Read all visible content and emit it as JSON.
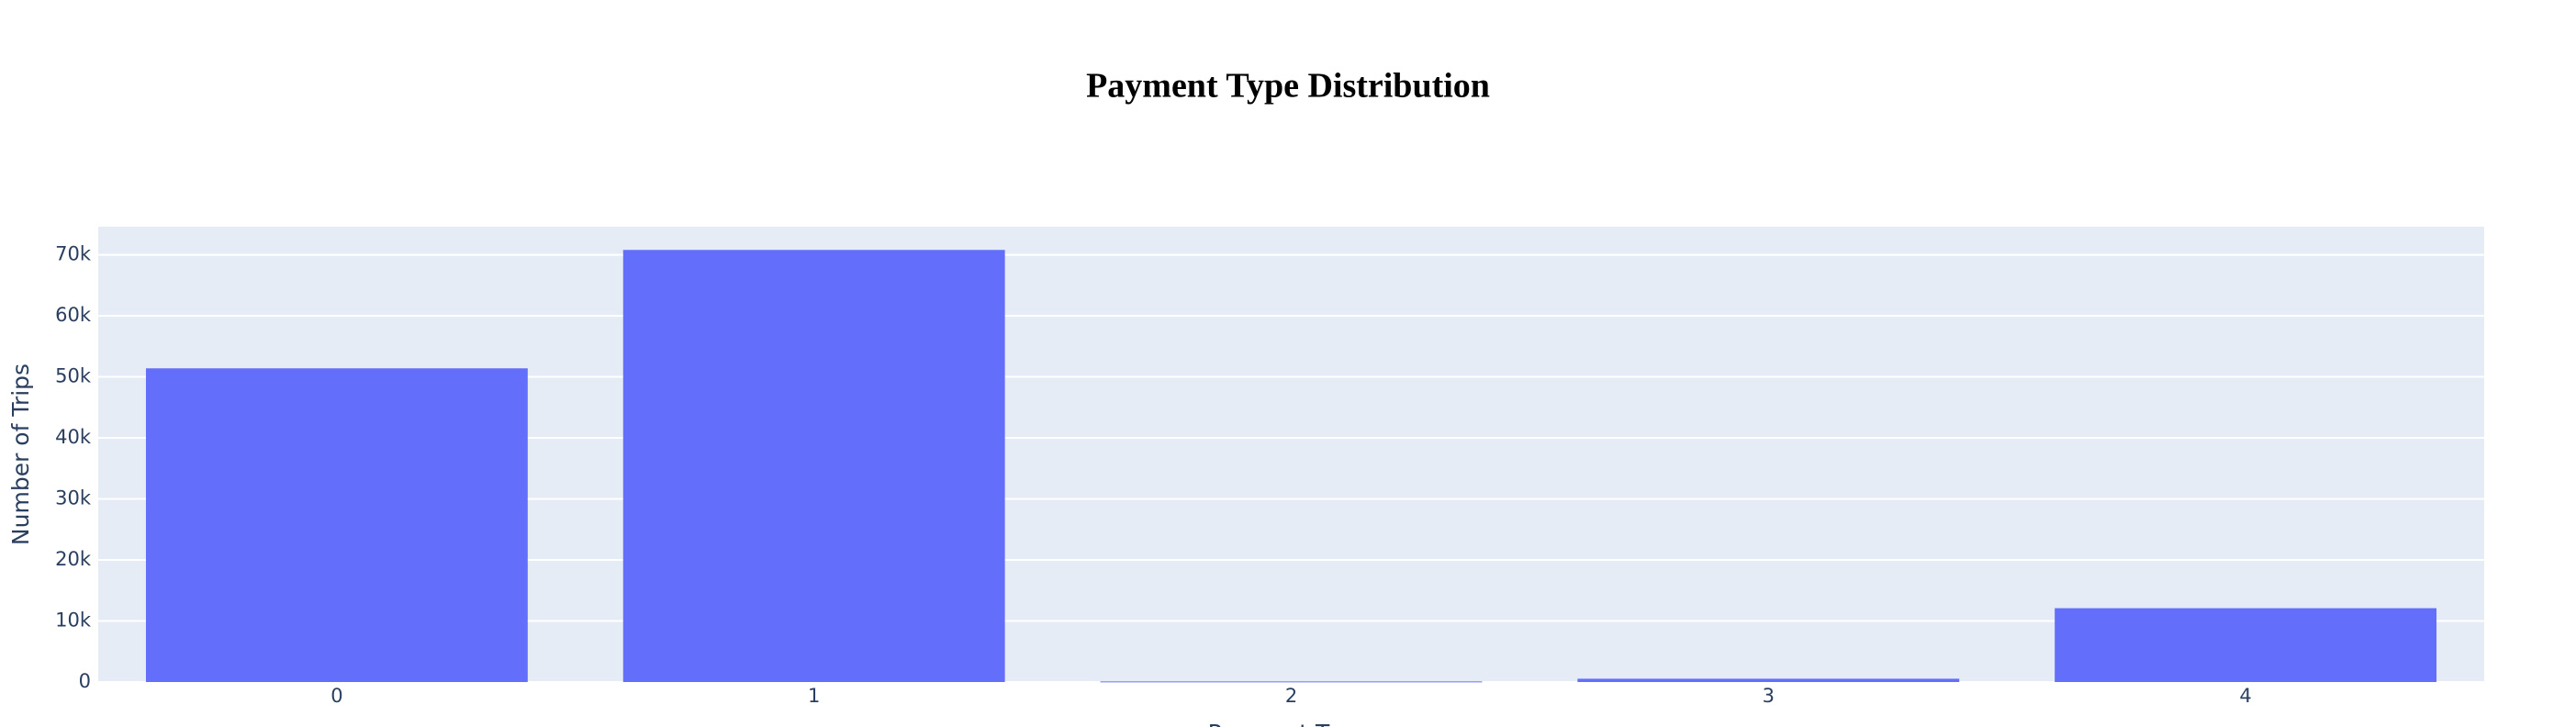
{
  "chart_data": {
    "type": "bar",
    "title": "Payment Type Distribution",
    "x_label": "Payment Type",
    "y_label": "Number of Trips",
    "categories": [
      "0",
      "1",
      "2",
      "3",
      "4"
    ],
    "values": [
      51400,
      70800,
      100,
      540,
      12100
    ],
    "color": "#636efa",
    "ylim": [
      0,
      74600
    ],
    "yticks": [
      0,
      {
        "value": 10000,
        "label": "10k"
      },
      {
        "value": 20000,
        "label": "20k"
      },
      {
        "value": 30000,
        "label": "30k"
      },
      {
        "value": 40000,
        "label": "40k"
      },
      {
        "value": 50000,
        "label": "50k"
      },
      {
        "value": 60000,
        "label": "60k"
      },
      {
        "value": 70000,
        "label": "70k"
      }
    ],
    "grid": true
  }
}
